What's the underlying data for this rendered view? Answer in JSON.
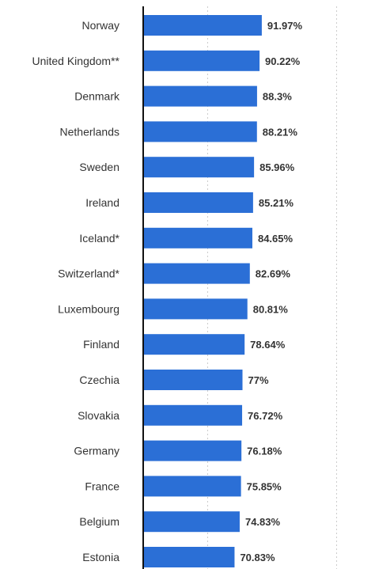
{
  "chart_data": {
    "type": "bar",
    "orientation": "horizontal",
    "categories": [
      "Norway",
      "United Kingdom**",
      "Denmark",
      "Netherlands",
      "Sweden",
      "Ireland",
      "Iceland*",
      "Switzerland*",
      "Luxembourg",
      "Finland",
      "Czechia",
      "Slovakia",
      "Germany",
      "France",
      "Belgium",
      "Estonia"
    ],
    "values": [
      91.97,
      90.22,
      88.3,
      88.21,
      85.96,
      85.21,
      84.65,
      82.69,
      80.81,
      78.64,
      77,
      76.72,
      76.18,
      75.85,
      74.83,
      70.83
    ],
    "value_labels": [
      "91.97%",
      "90.22%",
      "88.3%",
      "88.21%",
      "85.96%",
      "85.21%",
      "84.65%",
      "82.69%",
      "80.81%",
      "78.64%",
      "77%",
      "76.72%",
      "76.18%",
      "75.85%",
      "74.83%",
      "70.83%"
    ],
    "title": "",
    "xlabel": "",
    "ylabel": "",
    "xlim": [
      0,
      250
    ],
    "grid": true,
    "legend": "none",
    "bar_color": "#2b6fd6"
  }
}
